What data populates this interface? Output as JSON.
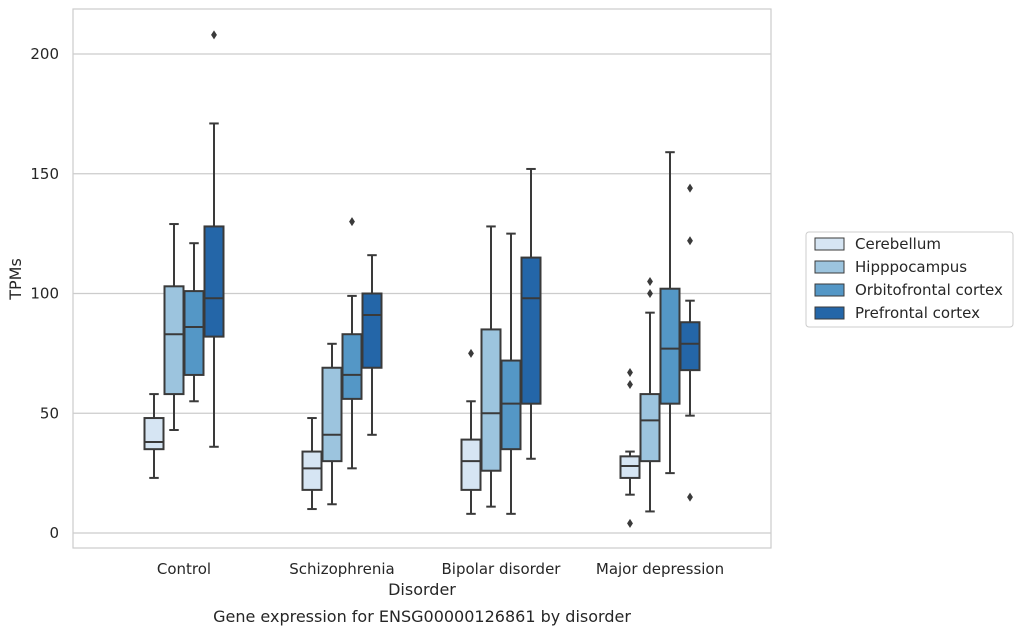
{
  "chart_data": {
    "type": "box",
    "xlabel": "Disorder",
    "ylabel": "TPMs",
    "caption": "Gene expression for ENSG00000126861 by disorder",
    "ylim": [
      -6,
      219
    ],
    "yticks": [
      0,
      50,
      100,
      150,
      200
    ],
    "grid": true,
    "legend_position": "right",
    "categories": [
      "Control",
      "Schizophrenia",
      "Bipolar disorder",
      "Major depression"
    ],
    "series": [
      {
        "name": "Cerebellum",
        "color": "#d6e5f3",
        "boxes": [
          {
            "whislo": 23,
            "q1": 35,
            "med": 38,
            "q3": 48,
            "whishi": 58,
            "fliers": []
          },
          {
            "whislo": 10,
            "q1": 18,
            "med": 27,
            "q3": 34,
            "whishi": 48,
            "fliers": []
          },
          {
            "whislo": 8,
            "q1": 18,
            "med": 30,
            "q3": 39,
            "whishi": 55,
            "fliers": [
              75
            ]
          },
          {
            "whislo": 16,
            "q1": 23,
            "med": 28,
            "q3": 32,
            "whishi": 34,
            "fliers": [
              4,
              62,
              67
            ]
          }
        ]
      },
      {
        "name": "Hipppocampus",
        "color": "#9cc4de",
        "boxes": [
          {
            "whislo": 43,
            "q1": 58,
            "med": 83,
            "q3": 103,
            "whishi": 129,
            "fliers": []
          },
          {
            "whislo": 12,
            "q1": 30,
            "med": 41,
            "q3": 69,
            "whishi": 79,
            "fliers": []
          },
          {
            "whislo": 11,
            "q1": 26,
            "med": 50,
            "q3": 85,
            "whishi": 128,
            "fliers": []
          },
          {
            "whislo": 9,
            "q1": 30,
            "med": 47,
            "q3": 58,
            "whishi": 92,
            "fliers": [
              100,
              105
            ]
          }
        ]
      },
      {
        "name": "Orbitofrontal cortex",
        "color": "#5497c6",
        "boxes": [
          {
            "whislo": 55,
            "q1": 66,
            "med": 86,
            "q3": 101,
            "whishi": 121,
            "fliers": []
          },
          {
            "whislo": 27,
            "q1": 56,
            "med": 66,
            "q3": 83,
            "whishi": 99,
            "fliers": [
              130
            ]
          },
          {
            "whislo": 8,
            "q1": 35,
            "med": 54,
            "q3": 72,
            "whishi": 125,
            "fliers": []
          },
          {
            "whislo": 25,
            "q1": 54,
            "med": 77,
            "q3": 102,
            "whishi": 159,
            "fliers": []
          }
        ]
      },
      {
        "name": "Prefrontal cortex",
        "color": "#2466a8",
        "boxes": [
          {
            "whislo": 36,
            "q1": 82,
            "med": 98,
            "q3": 128,
            "whishi": 171,
            "fliers": [
              208
            ]
          },
          {
            "whislo": 41,
            "q1": 69,
            "med": 91,
            "q3": 100,
            "whishi": 116,
            "fliers": []
          },
          {
            "whislo": 31,
            "q1": 54,
            "med": 98,
            "q3": 115,
            "whishi": 152,
            "fliers": []
          },
          {
            "whislo": 49,
            "q1": 68,
            "med": 79,
            "q3": 88,
            "whishi": 97,
            "fliers": [
              15,
              122,
              144
            ]
          }
        ]
      }
    ]
  }
}
